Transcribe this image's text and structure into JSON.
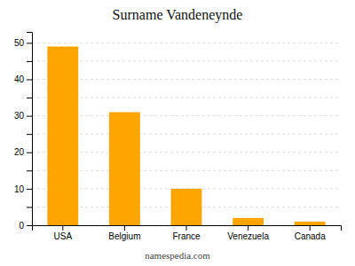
{
  "chart_data": {
    "type": "bar",
    "title": "Surname Vandeneynde",
    "categories": [
      "USA",
      "Belgium",
      "France",
      "Venezuela",
      "Canada"
    ],
    "values": [
      49,
      31,
      10,
      2,
      1
    ],
    "color": "#FFA500",
    "ylim": [
      0,
      53
    ],
    "yticks": [
      0,
      {
        "value": 5,
        "label": ""
      },
      10,
      {
        "value": 15,
        "label": ""
      },
      20,
      {
        "value": 25,
        "label": ""
      },
      30,
      {
        "value": 35,
        "label": ""
      },
      40,
      {
        "value": 45,
        "label": ""
      },
      50
    ],
    "grid": true,
    "annotations": [
      "namespedia.com"
    ]
  }
}
